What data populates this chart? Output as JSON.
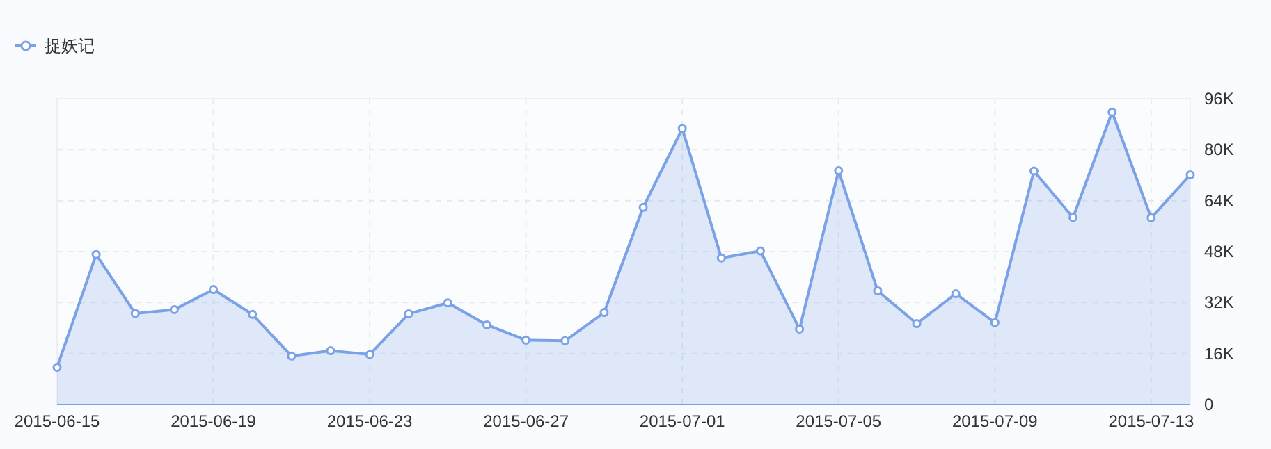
{
  "chart_data": {
    "type": "area",
    "legend": "top left",
    "marker": "circle",
    "grid": true,
    "x": [
      "2015-06-15",
      "2015-06-16",
      "2015-06-17",
      "2015-06-18",
      "2015-06-19",
      "2015-06-20",
      "2015-06-21",
      "2015-06-22",
      "2015-06-23",
      "2015-06-24",
      "2015-06-25",
      "2015-06-26",
      "2015-06-27",
      "2015-06-28",
      "2015-06-29",
      "2015-06-30",
      "2015-07-01",
      "2015-07-02",
      "2015-07-03",
      "2015-07-04",
      "2015-07-05",
      "2015-07-06",
      "2015-07-07",
      "2015-07-08",
      "2015-07-09",
      "2015-07-10",
      "2015-07-11",
      "2015-07-12",
      "2015-07-13",
      "2015-07-14"
    ],
    "series": [
      {
        "name": "捉妖记",
        "color": "#7ba2e6",
        "values": [
          11700,
          47100,
          28600,
          29800,
          36100,
          28300,
          15200,
          16900,
          15700,
          28500,
          31900,
          25000,
          20200,
          20000,
          28900,
          61900,
          86600,
          46000,
          48200,
          23700,
          73400,
          35700,
          25400,
          34800,
          25700,
          73300,
          58700,
          91800,
          58600,
          72100
        ]
      }
    ],
    "xlim": [
      "2015-06-15",
      "2015-07-14"
    ],
    "xticks": [
      "2015-06-15",
      "2015-06-19",
      "2015-06-23",
      "2015-06-27",
      "2015-07-01",
      "2015-07-05",
      "2015-07-09",
      "2015-07-13"
    ],
    "ylim": [
      0,
      96000
    ],
    "yticks": [
      0,
      {
        "value": 16000,
        "label": "16K"
      },
      {
        "value": 32000,
        "label": "32K"
      },
      {
        "value": 48000,
        "label": "48K"
      },
      {
        "value": 64000,
        "label": "64K"
      },
      {
        "value": 80000,
        "label": "80K"
      },
      {
        "value": 96000,
        "label": "96K"
      }
    ]
  }
}
